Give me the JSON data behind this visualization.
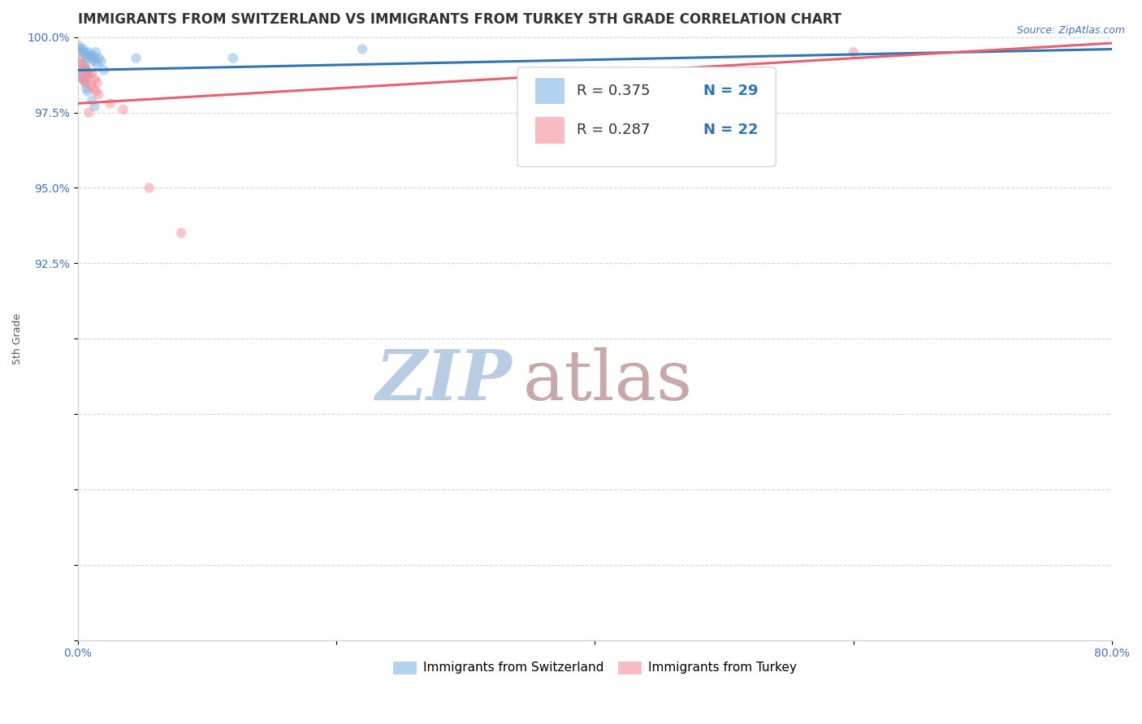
{
  "title": "IMMIGRANTS FROM SWITZERLAND VS IMMIGRANTS FROM TURKEY 5TH GRADE CORRELATION CHART",
  "source": "Source: ZipAtlas.com",
  "xlabel": "",
  "ylabel": "5th Grade",
  "xlim": [
    0.0,
    80.0
  ],
  "ylim": [
    80.0,
    100.0
  ],
  "xticks": [
    0.0,
    20.0,
    40.0,
    60.0,
    80.0
  ],
  "yticks": [
    80.0,
    82.5,
    85.0,
    87.5,
    90.0,
    92.5,
    95.0,
    97.5,
    100.0
  ],
  "xtick_labels": [
    "0.0%",
    "",
    "",
    "",
    "80.0%"
  ],
  "ytick_labels": [
    "",
    "",
    "",
    "",
    "",
    "92.5%",
    "95.0%",
    "97.5%",
    "100.0%"
  ],
  "blue_color": "#7EB4E3",
  "pink_color": "#F4909A",
  "blue_line_color": "#2E75B6",
  "pink_line_color": "#E86070",
  "legend_R_blue": "R = 0.375",
  "legend_N_blue": "N = 29",
  "legend_R_pink": "R = 0.287",
  "legend_N_pink": "N = 22",
  "legend_label_blue": "Immigrants from Switzerland",
  "legend_label_pink": "Immigrants from Turkey",
  "watermark_zip": "ZIP",
  "watermark_atlas": "atlas",
  "watermark_color_zip": "#B8CCE4",
  "watermark_color_atlas": "#C8A8A8",
  "blue_scatter_x": [
    0.1,
    0.2,
    0.3,
    0.4,
    0.5,
    0.6,
    0.7,
    0.8,
    0.9,
    1.0,
    1.1,
    1.2,
    1.3,
    1.4,
    1.5,
    1.6,
    1.8,
    2.0,
    4.5,
    12.0,
    22.0,
    0.25,
    0.35,
    0.45,
    0.55,
    0.65,
    0.75,
    1.1,
    1.3
  ],
  "blue_scatter_y": [
    99.7,
    99.6,
    99.5,
    99.6,
    99.5,
    99.4,
    99.3,
    99.5,
    99.4,
    99.3,
    99.4,
    99.2,
    99.3,
    99.5,
    99.1,
    99.3,
    99.2,
    98.9,
    99.3,
    99.3,
    99.6,
    99.0,
    98.8,
    98.6,
    98.5,
    98.3,
    98.2,
    97.9,
    97.7
  ],
  "blue_scatter_sizes": [
    80,
    80,
    80,
    80,
    80,
    80,
    80,
    80,
    80,
    80,
    80,
    80,
    80,
    80,
    80,
    80,
    80,
    80,
    80,
    80,
    80,
    250,
    250,
    80,
    80,
    80,
    80,
    80,
    80
  ],
  "pink_scatter_x": [
    0.1,
    0.3,
    0.5,
    0.7,
    0.9,
    1.1,
    1.3,
    1.5,
    0.2,
    0.4,
    0.6,
    0.8,
    1.0,
    1.2,
    1.4,
    1.6,
    2.5,
    3.5,
    5.5,
    8.0,
    60.0,
    0.85
  ],
  "pink_scatter_y": [
    99.3,
    99.1,
    99.0,
    98.9,
    98.8,
    98.8,
    98.6,
    98.5,
    98.7,
    98.6,
    98.5,
    98.7,
    98.4,
    98.3,
    98.2,
    98.1,
    97.8,
    97.6,
    95.0,
    93.5,
    99.5,
    97.5
  ],
  "pink_scatter_sizes": [
    80,
    80,
    80,
    80,
    80,
    80,
    80,
    80,
    80,
    80,
    80,
    80,
    80,
    80,
    80,
    80,
    80,
    80,
    80,
    80,
    80,
    80
  ],
  "blue_trend_x0": 0.0,
  "blue_trend_x1": 80.0,
  "blue_trend_y0": 98.9,
  "blue_trend_y1": 99.6,
  "pink_trend_x0": 0.0,
  "pink_trend_x1": 80.0,
  "pink_trend_y0": 97.8,
  "pink_trend_y1": 99.8,
  "grid_color": "#BBBBBB",
  "title_fontsize": 12,
  "axis_label_fontsize": 9,
  "tick_fontsize": 10,
  "legend_fontsize": 13,
  "tick_color": "#4472C4"
}
